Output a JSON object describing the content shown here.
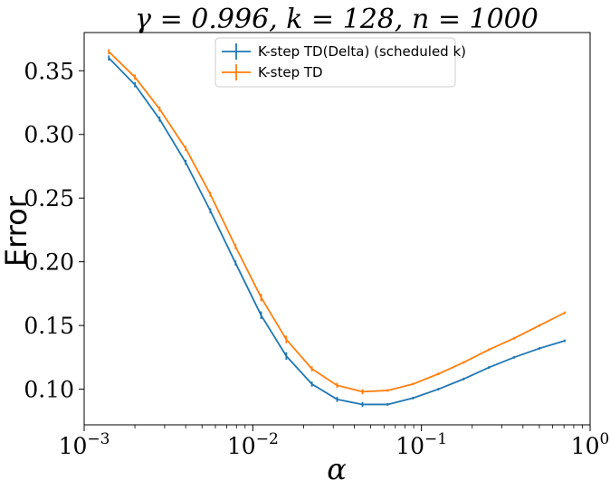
{
  "chart_data": {
    "type": "line",
    "title": "γ = 0.996, k = 128, n = 1000",
    "xlabel": "α",
    "ylabel": "Error",
    "xscale": "log",
    "xlim": [
      0.001,
      1
    ],
    "ylim": [
      0.072,
      0.38
    ],
    "x_ticks": [
      {
        "value": 0.001,
        "base": "10",
        "exp": "−3"
      },
      {
        "value": 0.01,
        "base": "10",
        "exp": "−2"
      },
      {
        "value": 0.1,
        "base": "10",
        "exp": "−1"
      },
      {
        "value": 1,
        "base": "10",
        "exp": "0"
      }
    ],
    "y_ticks": [
      {
        "value": 0.1,
        "label": "0.10"
      },
      {
        "value": 0.15,
        "label": "0.15"
      },
      {
        "value": 0.2,
        "label": "0.20"
      },
      {
        "value": 0.25,
        "label": "0.25"
      },
      {
        "value": 0.3,
        "label": "0.30"
      },
      {
        "value": 0.35,
        "label": "0.35"
      }
    ],
    "legend_position": "top-center",
    "grid": false,
    "series": [
      {
        "name": "K-step TD(Delta) (scheduled k)",
        "color": "#1f77b4",
        "x": [
          0.0014,
          0.002,
          0.0028,
          0.004,
          0.0056,
          0.0079,
          0.0112,
          0.0158,
          0.0224,
          0.0316,
          0.0447,
          0.0631,
          0.0891,
          0.126,
          0.178,
          0.251,
          0.355,
          0.501,
          0.708
        ],
        "y": [
          0.36,
          0.339,
          0.312,
          0.278,
          0.24,
          0.199,
          0.158,
          0.126,
          0.104,
          0.092,
          0.088,
          0.088,
          0.093,
          0.1,
          0.108,
          0.117,
          0.125,
          0.132,
          0.138
        ],
        "err": [
          0.002,
          0.002,
          0.002,
          0.002,
          0.002,
          0.002,
          0.003,
          0.003,
          0.002,
          0.002,
          0.002,
          0.001,
          0.001,
          0.001,
          0.001,
          0.001,
          0.001,
          0.001,
          0.001
        ]
      },
      {
        "name": "K-step TD",
        "color": "#ff7f0e",
        "x": [
          0.0014,
          0.002,
          0.0028,
          0.004,
          0.0056,
          0.0079,
          0.0112,
          0.0158,
          0.0224,
          0.0316,
          0.0447,
          0.0631,
          0.0891,
          0.126,
          0.178,
          0.251,
          0.355,
          0.501,
          0.708
        ],
        "y": [
          0.365,
          0.345,
          0.32,
          0.289,
          0.253,
          0.212,
          0.172,
          0.139,
          0.116,
          0.103,
          0.098,
          0.099,
          0.104,
          0.112,
          0.121,
          0.131,
          0.14,
          0.15,
          0.16
        ],
        "err": [
          0.002,
          0.002,
          0.002,
          0.002,
          0.002,
          0.002,
          0.003,
          0.003,
          0.002,
          0.002,
          0.002,
          0.001,
          0.001,
          0.001,
          0.001,
          0.001,
          0.001,
          0.001,
          0.001
        ]
      }
    ]
  }
}
